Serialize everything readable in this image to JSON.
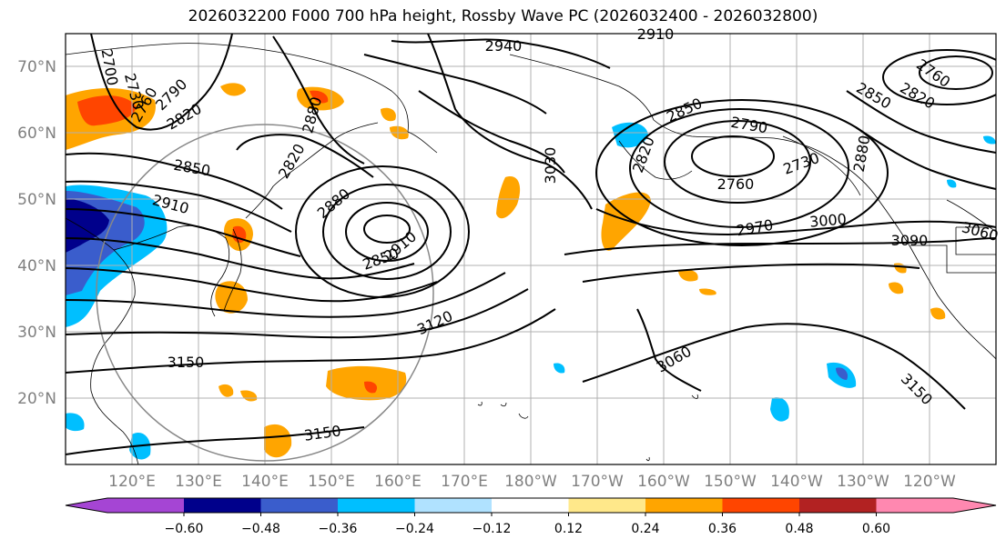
{
  "title": "2026032200 F000 700 hPa height, Rossby Wave PC (2026032400 - 2026032800)",
  "lat_labels": [
    "70°N",
    "60°N",
    "50°N",
    "40°N",
    "30°N",
    "20°N"
  ],
  "lon_labels": [
    "120°E",
    "130°E",
    "140°E",
    "150°E",
    "160°E",
    "170°E",
    "180°W",
    "170°W",
    "160°W",
    "150°W",
    "140°W",
    "130°W",
    "120°W"
  ],
  "contour_labels": [
    "2940",
    "2910",
    "2700",
    "2730",
    "2760",
    "2790",
    "2820",
    "2880",
    "2850",
    "2910",
    "2820",
    "2880",
    "2850",
    "2910",
    "3030",
    "2850",
    "2790",
    "2820",
    "2760",
    "2730",
    "2880",
    "2970",
    "3000",
    "3090",
    "3060",
    "3120",
    "3150",
    "3060",
    "3150",
    "3150",
    "2850",
    "2820",
    "2760"
  ],
  "colorbar": {
    "tick_labels": [
      "−0.60",
      "−0.48",
      "−0.36",
      "−0.24",
      "−0.12",
      "0.12",
      "0.24",
      "0.36",
      "0.48",
      "0.60"
    ],
    "colors": [
      "#a545d4",
      "#00008b",
      "#3a5dcc",
      "#00bfff",
      "#b0e2ff",
      "#ffffff",
      "#ffe88a",
      "#ffa500",
      "#ff4500",
      "#b22222",
      "#ff88b0"
    ]
  },
  "legend_colors": {
    "neg_strong": "#00008b",
    "neg_mid": "#3a5dcc",
    "neg_light": "#00bfff",
    "neg_pale": "#b0e2ff",
    "pos_pale": "#ffe88a",
    "pos_light": "#ffa500",
    "pos_mid": "#ff4500",
    "pos_strong": "#b22222"
  }
}
